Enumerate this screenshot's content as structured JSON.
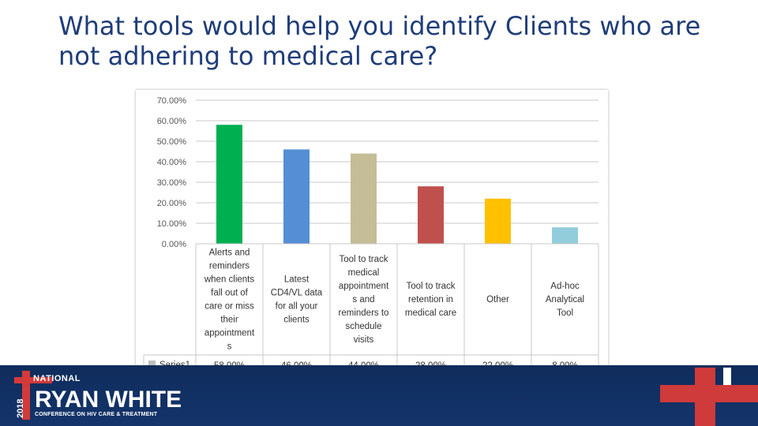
{
  "slide": {
    "title": "What tools would help you identify Clients who are not adhering to medical care?"
  },
  "chart_data": {
    "type": "bar",
    "title": "",
    "xlabel": "",
    "ylabel": "",
    "ylim": [
      0,
      70
    ],
    "y_ticks": [
      "0.00%",
      "10.00%",
      "20.00%",
      "30.00%",
      "40.00%",
      "50.00%",
      "60.00%",
      "70.00%"
    ],
    "grid": true,
    "legend_position": "data-table",
    "categories": [
      "Alerts and reminders when clients fall out of care or miss their appointment s",
      "Latest CD4/VL data for all your clients",
      "Tool to track medical appointment s and reminders to schedule visits",
      "Tool to track retention in medical care",
      "Other",
      "Ad-hoc Analytical Tool"
    ],
    "category_lines": [
      [
        "Alerts and",
        "reminders",
        "when clients",
        "fall out of",
        "care or miss",
        "their",
        "appointment",
        "s"
      ],
      [
        "Latest",
        "CD4/VL data",
        "for all your",
        "clients"
      ],
      [
        "Tool to track",
        "medical",
        "appointment",
        "s and",
        "reminders to",
        "schedule",
        "visits"
      ],
      [
        "Tool to track",
        "retention in",
        "medical care"
      ],
      [
        "Other"
      ],
      [
        "Ad-hoc",
        "Analytical",
        "Tool"
      ]
    ],
    "series": [
      {
        "name": "Series1",
        "values": [
          58.0,
          46.0,
          44.0,
          28.0,
          22.0,
          8.0
        ],
        "labels": [
          "58.00%",
          "46.00%",
          "44.00%",
          "28.00%",
          "22.00%",
          "8.00%"
        ],
        "colors": [
          "#00b050",
          "#558ed5",
          "#c4bd97",
          "#c0504d",
          "#ffc000",
          "#92cddc"
        ]
      }
    ],
    "legend_marker_color": "#bfbfbf"
  },
  "footer": {
    "logo_year": "2018",
    "logo_top": "NATIONAL",
    "logo_name": "RYAN WHITE",
    "logo_sub": "CONFERENCE ON HIV CARE & TREATMENT"
  }
}
